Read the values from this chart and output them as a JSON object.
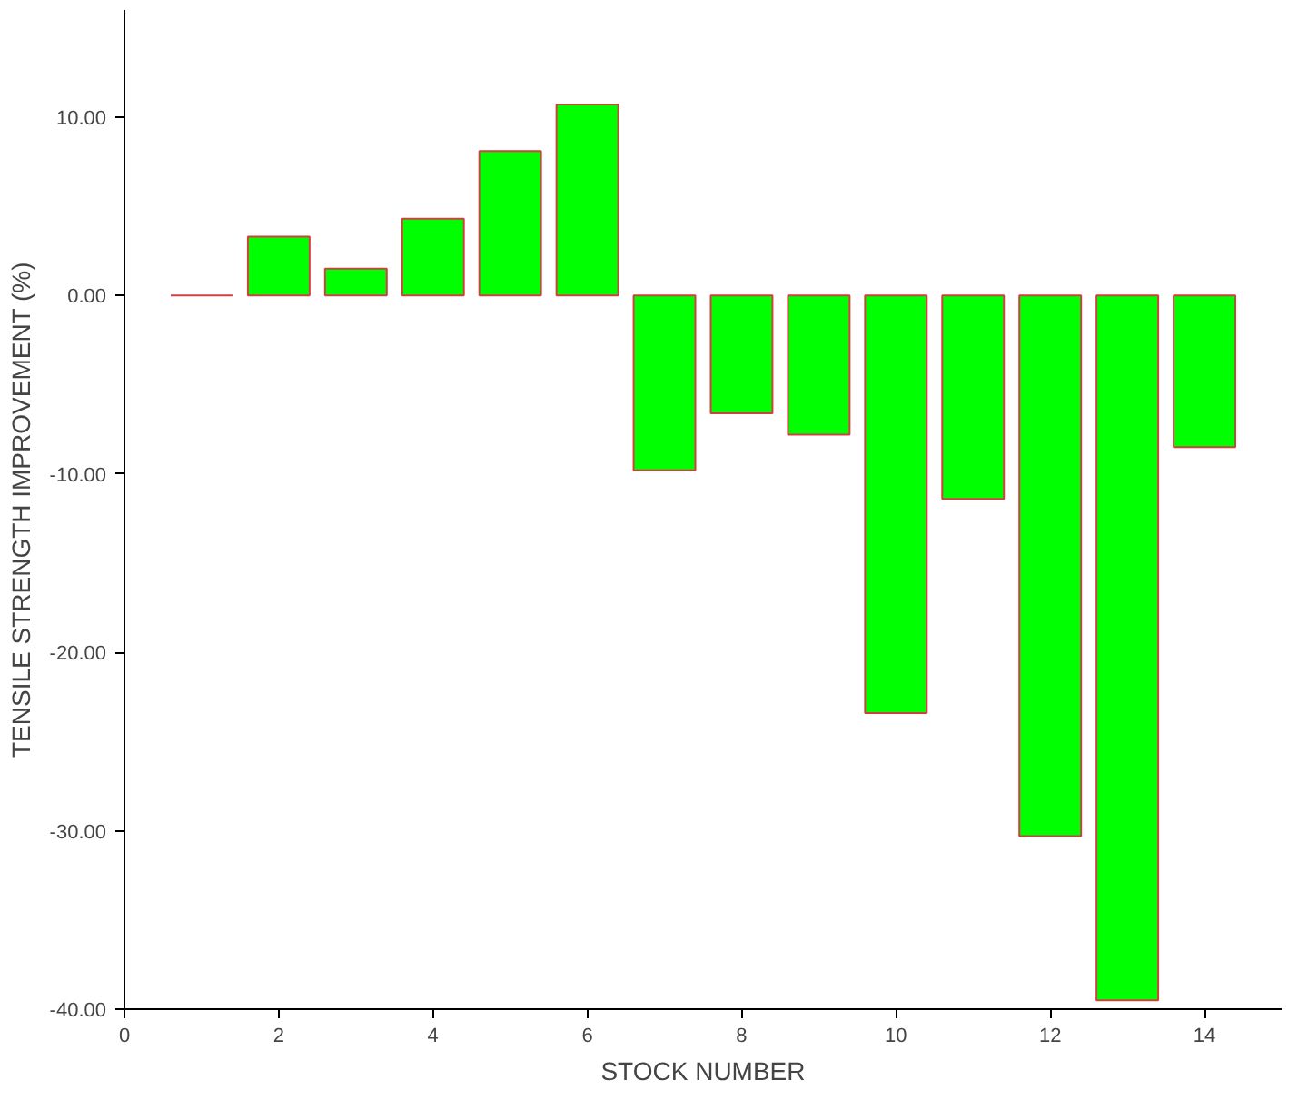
{
  "chart_data": {
    "type": "bar",
    "xlabel": "STOCK NUMBER",
    "ylabel": "TENSILE STRENGTH IMPROVEMENT (%)",
    "x": [
      1,
      2,
      3,
      4,
      5,
      6,
      7,
      8,
      9,
      10,
      11,
      12,
      13,
      14
    ],
    "values": [
      0,
      3.3,
      1.5,
      4.3,
      8.1,
      10.7,
      -9.8,
      -6.6,
      -7.8,
      -23.4,
      -11.4,
      -30.3,
      -39.5,
      -8.5
    ],
    "colors": [
      "#d04040",
      "#00ff00",
      "#00ff00",
      "#00ff00",
      "#00ff00",
      "#00ff00",
      "#00ff00",
      "#00ff00",
      "#00ff00",
      "#00ff00",
      "#00ff00",
      "#00ff00",
      "#00ff00",
      "#00ff00"
    ],
    "xlim": [
      0,
      15
    ],
    "xticks": [
      0,
      2,
      4,
      6,
      8,
      10,
      12,
      14
    ],
    "ylim": [
      -40,
      16
    ],
    "yticks": [
      {
        "value": 10,
        "label": "10.00"
      },
      {
        "value": 0,
        "label": "0.00"
      },
      {
        "value": -10,
        "label": "-10.00"
      },
      {
        "value": -20,
        "label": "-20.00"
      },
      {
        "value": -30,
        "label": "-30.00"
      },
      {
        "value": -40,
        "label": "-40.00"
      }
    ],
    "grid": false
  }
}
